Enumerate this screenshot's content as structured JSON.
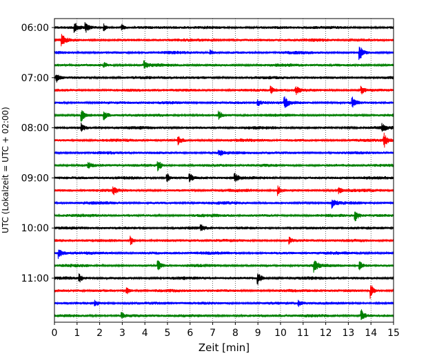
{
  "chart_data": {
    "type": "line",
    "title": "",
    "xlabel": "Zeit  [min]",
    "ylabel": "UTC (Lokalzeit = UTC + 02:00)",
    "xlim": [
      0,
      15
    ],
    "x_ticks": [
      "0",
      "1",
      "2",
      "3",
      "4",
      "5",
      "6",
      "7",
      "8",
      "9",
      "10",
      "11",
      "12",
      "13",
      "14",
      "15"
    ],
    "y_ticks": [
      "06:00",
      "07:00",
      "08:00",
      "09:00",
      "10:00",
      "11:00"
    ],
    "grid": "vertical-dotted",
    "trace_colors": [
      "#000000",
      "#ff0000",
      "#0000ff",
      "#008000"
    ],
    "traces_count_note": "24 helicorder lines, 15 min each, 06:00-11:45 UTC",
    "series": [
      {
        "start": "06:00",
        "color": "#000000",
        "events": [
          [
            0.9,
            1.0
          ],
          [
            1.4,
            0.8
          ],
          [
            2.2,
            0.7
          ],
          [
            3.0,
            0.6
          ]
        ]
      },
      {
        "start": "06:15",
        "color": "#ff0000",
        "events": [
          [
            0.35,
            1.0
          ]
        ]
      },
      {
        "start": "06:30",
        "color": "#0000ff",
        "events": [
          [
            13.5,
            1.6
          ],
          [
            6.9,
            0.5
          ]
        ]
      },
      {
        "start": "06:45",
        "color": "#008000",
        "events": [
          [
            4.0,
            0.7
          ],
          [
            2.2,
            0.5
          ]
        ]
      },
      {
        "start": "07:00",
        "color": "#000000",
        "events": [
          [
            0.1,
            0.8
          ]
        ]
      },
      {
        "start": "07:15",
        "color": "#ff0000",
        "events": [
          [
            9.6,
            0.7
          ],
          [
            10.7,
            0.7
          ],
          [
            13.6,
            0.7
          ]
        ]
      },
      {
        "start": "07:30",
        "color": "#0000ff",
        "events": [
          [
            9.0,
            0.6
          ],
          [
            10.2,
            1.0
          ],
          [
            13.2,
            1.0
          ]
        ]
      },
      {
        "start": "07:45",
        "color": "#008000",
        "events": [
          [
            1.2,
            1.2
          ],
          [
            2.2,
            0.9
          ],
          [
            7.3,
            0.8
          ]
        ]
      },
      {
        "start": "08:00",
        "color": "#000000",
        "events": [
          [
            1.2,
            0.9
          ],
          [
            14.5,
            0.8
          ]
        ]
      },
      {
        "start": "08:15",
        "color": "#ff0000",
        "events": [
          [
            5.5,
            0.8
          ],
          [
            14.6,
            1.3
          ]
        ]
      },
      {
        "start": "08:30",
        "color": "#0000ff",
        "events": [
          [
            7.3,
            0.6
          ]
        ]
      },
      {
        "start": "08:45",
        "color": "#008000",
        "events": [
          [
            4.6,
            1.1
          ],
          [
            1.5,
            0.6
          ]
        ]
      },
      {
        "start": "09:00",
        "color": "#000000",
        "events": [
          [
            5.0,
            1.0
          ],
          [
            6.0,
            0.9
          ],
          [
            8.0,
            0.8
          ]
        ]
      },
      {
        "start": "09:15",
        "color": "#ff0000",
        "events": [
          [
            2.6,
            0.8
          ],
          [
            9.9,
            1.0
          ],
          [
            12.6,
            0.6
          ]
        ]
      },
      {
        "start": "09:30",
        "color": "#0000ff",
        "events": [
          [
            12.3,
            1.0
          ]
        ]
      },
      {
        "start": "09:45",
        "color": "#008000",
        "events": [
          [
            13.3,
            1.3
          ]
        ]
      },
      {
        "start": "10:00",
        "color": "#000000",
        "events": [
          [
            6.5,
            0.5
          ]
        ]
      },
      {
        "start": "10:15",
        "color": "#ff0000",
        "events": [
          [
            3.4,
            0.9
          ],
          [
            10.4,
            0.6
          ]
        ]
      },
      {
        "start": "10:30",
        "color": "#0000ff",
        "events": [
          [
            0.2,
            1.0
          ]
        ]
      },
      {
        "start": "10:45",
        "color": "#008000",
        "events": [
          [
            4.6,
            1.0
          ],
          [
            11.5,
            1.3
          ],
          [
            13.5,
            0.9
          ]
        ]
      },
      {
        "start": "11:00",
        "color": "#000000",
        "events": [
          [
            9.0,
            1.4
          ],
          [
            1.1,
            0.8
          ]
        ]
      },
      {
        "start": "11:15",
        "color": "#ff0000",
        "events": [
          [
            14.0,
            1.5
          ],
          [
            3.2,
            0.8
          ]
        ]
      },
      {
        "start": "11:30",
        "color": "#0000ff",
        "events": [
          [
            1.8,
            0.6
          ],
          [
            10.8,
            0.6
          ]
        ]
      },
      {
        "start": "11:45",
        "color": "#008000",
        "events": [
          [
            13.6,
            1.2
          ],
          [
            3.0,
            0.6
          ]
        ]
      }
    ]
  }
}
